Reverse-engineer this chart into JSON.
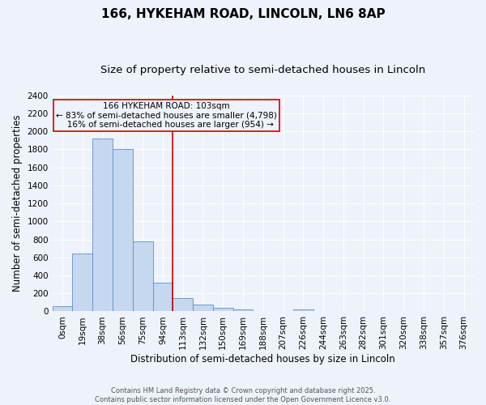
{
  "title1": "166, HYKEHAM ROAD, LINCOLN, LN6 8AP",
  "title2": "Size of property relative to semi-detached houses in Lincoln",
  "xlabel": "Distribution of semi-detached houses by size in Lincoln",
  "ylabel": "Number of semi-detached properties",
  "bar_labels": [
    "0sqm",
    "19sqm",
    "38sqm",
    "56sqm",
    "75sqm",
    "94sqm",
    "113sqm",
    "132sqm",
    "150sqm",
    "169sqm",
    "188sqm",
    "207sqm",
    "226sqm",
    "244sqm",
    "263sqm",
    "282sqm",
    "301sqm",
    "320sqm",
    "338sqm",
    "357sqm",
    "376sqm"
  ],
  "bar_values": [
    55,
    640,
    1920,
    1800,
    775,
    320,
    150,
    75,
    40,
    20,
    0,
    0,
    20,
    0,
    0,
    0,
    0,
    0,
    0,
    0,
    0
  ],
  "bar_color": "#c5d8f0",
  "bar_edge_color": "#5b8fc9",
  "property_line_x": 5.5,
  "annotation_text_line1": "166 HYKEHAM ROAD: 103sqm",
  "annotation_text_line2": "← 83% of semi-detached houses are smaller (4,798)",
  "annotation_text_line3": "   16% of semi-detached houses are larger (954) →",
  "vline_color": "#cc0000",
  "ylim": [
    0,
    2400
  ],
  "yticks": [
    0,
    200,
    400,
    600,
    800,
    1000,
    1200,
    1400,
    1600,
    1800,
    2000,
    2200,
    2400
  ],
  "footer": "Contains HM Land Registry data © Crown copyright and database right 2025.\nContains public sector information licensed under the Open Government Licence v3.0.",
  "bg_color": "#eef2fb",
  "grid_color": "#ffffff",
  "title_fontsize": 11,
  "subtitle_fontsize": 9.5,
  "axis_label_fontsize": 8.5,
  "tick_fontsize": 7.5,
  "footer_fontsize": 6.0,
  "annotation_fontsize": 7.5
}
